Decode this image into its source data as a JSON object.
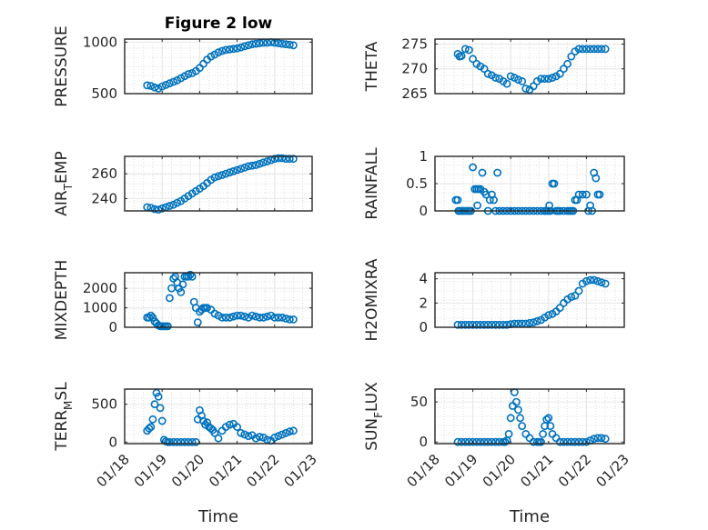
{
  "chart_data": [
    {
      "type": "scatter",
      "title": "Figure 2 low",
      "ylabel": "PRESSURE",
      "ylim": [
        500,
        1030
      ],
      "yticks": [
        500,
        1000
      ],
      "xlim": [
        "01/18",
        "01/23"
      ],
      "grid": true,
      "color": "#0072BD",
      "x": [
        18.6,
        18.7,
        18.8,
        18.9,
        19.0,
        19.1,
        19.2,
        19.3,
        19.4,
        19.5,
        19.6,
        19.7,
        19.8,
        19.9,
        20.0,
        20.1,
        20.2,
        20.3,
        20.4,
        20.5,
        20.6,
        20.7,
        20.8,
        20.9,
        21.0,
        21.1,
        21.2,
        21.3,
        21.4,
        21.5,
        21.6,
        21.7,
        21.8,
        21.9,
        22.0,
        22.1,
        22.2,
        22.3,
        22.4,
        22.5
      ],
      "y": [
        580,
        575,
        560,
        550,
        570,
        585,
        600,
        615,
        630,
        650,
        670,
        690,
        700,
        720,
        750,
        790,
        830,
        860,
        880,
        900,
        915,
        925,
        930,
        935,
        940,
        950,
        960,
        970,
        980,
        985,
        990,
        995,
        995,
        1000,
        995,
        990,
        985,
        980,
        975,
        970
      ]
    },
    {
      "type": "scatter",
      "ylabel": "THETA",
      "ylim": [
        265,
        276
      ],
      "yticks": [
        265,
        270,
        275
      ],
      "xlim": [
        "01/18",
        "01/23"
      ],
      "grid": true,
      "color": "#0072BD",
      "x": [
        18.6,
        18.65,
        18.7,
        18.8,
        18.9,
        19.0,
        19.1,
        19.2,
        19.3,
        19.4,
        19.5,
        19.6,
        19.7,
        19.8,
        19.9,
        20.0,
        20.1,
        20.2,
        20.3,
        20.4,
        20.5,
        20.6,
        20.7,
        20.8,
        20.9,
        21.0,
        21.1,
        21.2,
        21.3,
        21.4,
        21.5,
        21.6,
        21.7,
        21.8,
        21.9,
        22.0,
        22.1,
        22.2,
        22.3,
        22.4,
        22.5
      ],
      "y": [
        273,
        272.5,
        272.6,
        274,
        273.8,
        272,
        271,
        270.5,
        270,
        269,
        268.7,
        268.2,
        268,
        267.5,
        267,
        268.5,
        268.2,
        267.8,
        267.5,
        266,
        265.8,
        266.5,
        267.5,
        268,
        268,
        268,
        268.2,
        268.5,
        269,
        270,
        271,
        272.5,
        273.5,
        274,
        274,
        274,
        274,
        274,
        274,
        274,
        274
      ]
    },
    {
      "type": "scatter",
      "ylabel": "AIR_TEMP",
      "ylim": [
        230,
        274
      ],
      "yticks": [
        240,
        260
      ],
      "xlim": [
        "01/18",
        "01/23"
      ],
      "grid": true,
      "color": "#0072BD",
      "x": [
        18.6,
        18.7,
        18.8,
        18.9,
        19.0,
        19.1,
        19.2,
        19.3,
        19.4,
        19.5,
        19.6,
        19.7,
        19.8,
        19.9,
        20.0,
        20.1,
        20.2,
        20.3,
        20.4,
        20.5,
        20.6,
        20.7,
        20.8,
        20.9,
        21.0,
        21.1,
        21.2,
        21.3,
        21.4,
        21.5,
        21.6,
        21.7,
        21.8,
        21.9,
        22.0,
        22.1,
        22.2,
        22.3,
        22.4,
        22.5
      ],
      "y": [
        233,
        232.5,
        231.5,
        231,
        232,
        233,
        234,
        235,
        236.5,
        238,
        240,
        242,
        244,
        246,
        248,
        250,
        252.5,
        255,
        257,
        258,
        259,
        260,
        261,
        262,
        263,
        264,
        265,
        266,
        266.5,
        267,
        268,
        269,
        270,
        271,
        272,
        272.5,
        272.5,
        272,
        272,
        272
      ]
    },
    {
      "type": "scatter",
      "ylabel": "RAINFALL",
      "ylim": [
        0,
        1
      ],
      "yticks": [
        0,
        0.5,
        1
      ],
      "xlim": [
        "01/18",
        "01/23"
      ],
      "grid": true,
      "color": "#0072BD",
      "x": [
        18.55,
        18.6,
        18.62,
        18.65,
        18.7,
        18.75,
        18.8,
        18.85,
        18.9,
        18.95,
        19.0,
        19.05,
        19.1,
        19.12,
        19.15,
        19.2,
        19.25,
        19.3,
        19.35,
        19.4,
        19.45,
        19.5,
        19.55,
        19.6,
        19.65,
        19.7,
        19.8,
        19.9,
        20.0,
        20.1,
        20.2,
        20.3,
        20.4,
        20.5,
        20.6,
        20.7,
        20.8,
        20.9,
        20.95,
        21.0,
        21.02,
        21.05,
        21.1,
        21.15,
        21.2,
        21.25,
        21.3,
        21.4,
        21.5,
        21.55,
        21.6,
        21.65,
        21.7,
        21.75,
        21.8,
        21.9,
        22.0,
        22.05,
        22.1,
        22.15,
        22.2,
        22.25,
        22.3,
        22.35
      ],
      "y": [
        0.2,
        0.2,
        0,
        0,
        0,
        0,
        0,
        0,
        0,
        0,
        0.8,
        0.4,
        0.4,
        0.1,
        0.4,
        0.4,
        0.7,
        0.35,
        0.3,
        0,
        0.2,
        0.3,
        0.2,
        0,
        0.7,
        0,
        0,
        0,
        0,
        0,
        0,
        0,
        0,
        0,
        0,
        0,
        0,
        0,
        0,
        0,
        0.1,
        0,
        0.5,
        0.5,
        0,
        0,
        0,
        0,
        0,
        0,
        0,
        0,
        0.2,
        0.2,
        0.3,
        0.3,
        0.3,
        0,
        0.1,
        0,
        0.7,
        0.6,
        0.3,
        0.3
      ]
    },
    {
      "type": "scatter",
      "ylabel": "MIXDEPTH",
      "ylim": [
        0,
        2800
      ],
      "yticks": [
        0,
        1000,
        2000
      ],
      "xlim": [
        "01/18",
        "01/23"
      ],
      "grid": true,
      "color": "#0072BD",
      "x": [
        18.6,
        18.65,
        18.7,
        18.75,
        18.8,
        18.85,
        18.9,
        18.95,
        19.0,
        19.05,
        19.1,
        19.15,
        19.2,
        19.25,
        19.3,
        19.35,
        19.4,
        19.45,
        19.5,
        19.55,
        19.6,
        19.65,
        19.7,
        19.75,
        19.8,
        19.85,
        19.9,
        19.95,
        20.0,
        20.05,
        20.1,
        20.15,
        20.2,
        20.3,
        20.4,
        20.5,
        20.6,
        20.7,
        20.8,
        20.9,
        21.0,
        21.1,
        21.2,
        21.3,
        21.4,
        21.5,
        21.6,
        21.7,
        21.8,
        21.9,
        22.0,
        22.1,
        22.2,
        22.3,
        22.4,
        22.5
      ],
      "y": [
        500,
        500,
        600,
        500,
        300,
        200,
        100,
        50,
        50,
        50,
        50,
        50,
        1500,
        2000,
        2500,
        2600,
        2300,
        2000,
        1800,
        2200,
        2600,
        2600,
        2600,
        2700,
        2600,
        1300,
        1000,
        250,
        800,
        900,
        1000,
        1000,
        1000,
        900,
        700,
        600,
        500,
        500,
        500,
        550,
        600,
        600,
        550,
        500,
        600,
        550,
        500,
        500,
        550,
        600,
        500,
        500,
        500,
        450,
        400,
        400
      ]
    },
    {
      "type": "scatter",
      "ylabel": "H2OMIXRA",
      "ylim": [
        0,
        4.5
      ],
      "yticks": [
        0,
        2,
        4
      ],
      "xlim": [
        "01/18",
        "01/23"
      ],
      "grid": true,
      "color": "#0072BD",
      "x": [
        18.6,
        18.7,
        18.8,
        18.9,
        19.0,
        19.1,
        19.2,
        19.3,
        19.4,
        19.5,
        19.6,
        19.7,
        19.8,
        19.9,
        20.0,
        20.1,
        20.2,
        20.3,
        20.4,
        20.5,
        20.6,
        20.7,
        20.8,
        20.9,
        21.0,
        21.1,
        21.2,
        21.3,
        21.4,
        21.5,
        21.6,
        21.7,
        21.8,
        21.9,
        22.0,
        22.1,
        22.2,
        22.3,
        22.4,
        22.5
      ],
      "y": [
        0.2,
        0.2,
        0.2,
        0.2,
        0.2,
        0.2,
        0.2,
        0.2,
        0.2,
        0.2,
        0.2,
        0.2,
        0.2,
        0.2,
        0.25,
        0.3,
        0.3,
        0.3,
        0.3,
        0.35,
        0.4,
        0.5,
        0.6,
        0.8,
        1.0,
        1.1,
        1.3,
        1.6,
        2.0,
        2.3,
        2.5,
        2.6,
        3.0,
        3.6,
        3.8,
        3.9,
        3.9,
        3.8,
        3.7,
        3.6
      ]
    },
    {
      "type": "scatter",
      "ylabel": "TERR_MSL",
      "ylim": [
        -20,
        700
      ],
      "yticks": [
        0,
        500
      ],
      "xlim": [
        "01/18",
        "01/23"
      ],
      "xticklabels": [
        "01/18",
        "01/19",
        "01/20",
        "01/21",
        "01/22",
        "01/23"
      ],
      "xlabel": "Time",
      "grid": true,
      "color": "#0072BD",
      "x": [
        18.6,
        18.65,
        18.7,
        18.75,
        18.8,
        18.85,
        18.9,
        18.95,
        19.0,
        19.05,
        19.1,
        19.15,
        19.2,
        19.3,
        19.4,
        19.5,
        19.6,
        19.7,
        19.8,
        19.9,
        19.95,
        20.0,
        20.05,
        20.1,
        20.15,
        20.2,
        20.25,
        20.3,
        20.35,
        20.4,
        20.5,
        20.6,
        20.7,
        20.8,
        20.9,
        21.0,
        21.1,
        21.2,
        21.3,
        21.4,
        21.5,
        21.6,
        21.7,
        21.8,
        21.9,
        22.0,
        22.1,
        22.2,
        22.3,
        22.4,
        22.5
      ],
      "y": [
        150,
        180,
        200,
        300,
        500,
        650,
        600,
        450,
        280,
        30,
        10,
        0,
        0,
        0,
        0,
        0,
        0,
        0,
        0,
        0,
        300,
        420,
        350,
        280,
        230,
        260,
        200,
        180,
        160,
        120,
        50,
        150,
        200,
        230,
        240,
        200,
        120,
        100,
        80,
        90,
        50,
        70,
        60,
        30,
        20,
        60,
        80,
        100,
        120,
        140,
        150
      ]
    },
    {
      "type": "scatter",
      "ylabel": "SUN_FLUX",
      "ylim": [
        -2,
        66
      ],
      "yticks": [
        0,
        50
      ],
      "xlim": [
        "01/18",
        "01/23"
      ],
      "xticklabels": [
        "01/18",
        "01/19",
        "01/20",
        "01/21",
        "01/22",
        "01/23"
      ],
      "xlabel": "Time",
      "grid": true,
      "color": "#0072BD",
      "x": [
        18.6,
        18.7,
        18.8,
        18.9,
        19.0,
        19.1,
        19.2,
        19.3,
        19.4,
        19.5,
        19.6,
        19.7,
        19.8,
        19.85,
        19.9,
        19.95,
        20.0,
        20.05,
        20.1,
        20.15,
        20.2,
        20.25,
        20.3,
        20.4,
        20.5,
        20.6,
        20.7,
        20.75,
        20.8,
        20.85,
        20.9,
        20.95,
        21.0,
        21.05,
        21.1,
        21.2,
        21.3,
        21.4,
        21.5,
        21.6,
        21.7,
        21.8,
        21.9,
        22.0,
        22.1,
        22.2,
        22.3,
        22.4,
        22.5
      ],
      "y": [
        0,
        0,
        0,
        0,
        0,
        0,
        0,
        0,
        0,
        0,
        0,
        0,
        0,
        0,
        2,
        10,
        30,
        45,
        62,
        50,
        40,
        30,
        20,
        10,
        5,
        0,
        0,
        0,
        0,
        10,
        20,
        28,
        30,
        20,
        10,
        5,
        0,
        0,
        0,
        0,
        0,
        0,
        0,
        0,
        2,
        4,
        5,
        5,
        4
      ]
    }
  ]
}
